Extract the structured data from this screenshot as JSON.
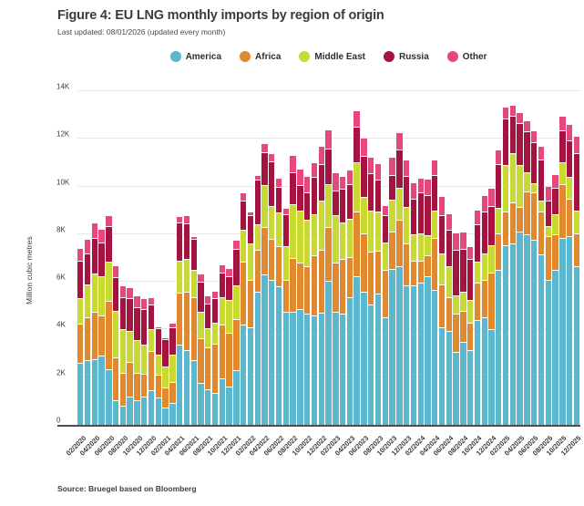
{
  "title": "Figure 4: EU LNG monthly imports by region of origin",
  "subtitle": "Last updated: 08/01/2026 (updated every month)",
  "source": "Source: Bruegel based on Bloomberg",
  "chart_data": {
    "type": "bar",
    "stacked": true,
    "title": "Figure 4: EU LNG monthly imports by region of origin",
    "ylabel": "Million cubic metres",
    "ylim": [
      0,
      14000
    ],
    "yticks": [
      "0",
      "2K",
      "4K",
      "6K",
      "8K",
      "10K",
      "12K",
      "14K"
    ],
    "grid": true,
    "legend_position": "top-center",
    "x_label_every": 2,
    "x": [
      "02/2020",
      "03/2020",
      "04/2020",
      "05/2020",
      "06/2020",
      "07/2020",
      "08/2020",
      "09/2020",
      "10/2020",
      "11/2020",
      "12/2020",
      "01/2021",
      "02/2021",
      "03/2021",
      "04/2021",
      "05/2021",
      "06/2021",
      "07/2021",
      "08/2021",
      "09/2021",
      "10/2021",
      "11/2021",
      "12/2021",
      "01/2022",
      "02/2022",
      "03/2022",
      "04/2022",
      "05/2022",
      "06/2022",
      "07/2022",
      "08/2022",
      "09/2022",
      "10/2022",
      "11/2022",
      "12/2022",
      "01/2023",
      "02/2023",
      "03/2023",
      "04/2023",
      "05/2023",
      "06/2023",
      "07/2023",
      "08/2023",
      "09/2023",
      "10/2023",
      "11/2023",
      "12/2023",
      "01/2024",
      "02/2024",
      "03/2024",
      "04/2024",
      "05/2024",
      "06/2024",
      "07/2024",
      "08/2024",
      "09/2024",
      "10/2024",
      "11/2024",
      "12/2024",
      "01/2025",
      "02/2025",
      "03/2025",
      "04/2025",
      "05/2025",
      "06/2025",
      "07/2025",
      "08/2025",
      "09/2025",
      "10/2025",
      "11/2025",
      "12/2025"
    ],
    "series": [
      {
        "name": "America",
        "color": "#5BB7CE",
        "values": [
          2600,
          2700,
          2750,
          2900,
          2350,
          1050,
          800,
          1200,
          1050,
          1200,
          1450,
          1150,
          720,
          900,
          3350,
          3150,
          2700,
          1750,
          1500,
          1350,
          1950,
          1600,
          2300,
          4200,
          4100,
          5600,
          6300,
          6100,
          5800,
          4750,
          4750,
          4850,
          4650,
          4600,
          4700,
          6050,
          4750,
          4650,
          5350,
          6250,
          5600,
          5050,
          5500,
          4500,
          6550,
          6650,
          5850,
          5850,
          5950,
          6250,
          5650,
          4100,
          3950,
          3050,
          3500,
          3150,
          4400,
          4500,
          4000,
          6500,
          7550,
          7600,
          8100,
          8000,
          7750,
          7150,
          6100,
          6500,
          7850,
          7900,
          6650
        ]
      },
      {
        "name": "Africa",
        "color": "#E0892F",
        "values": [
          1650,
          1800,
          2000,
          1700,
          2850,
          1800,
          1400,
          1450,
          1150,
          950,
          1650,
          950,
          840,
          900,
          2200,
          2450,
          2650,
          1900,
          1750,
          2050,
          2250,
          2250,
          2150,
          2650,
          2000,
          1750,
          2000,
          1700,
          1700,
          1350,
          2250,
          1950,
          2000,
          2500,
          2650,
          2250,
          2050,
          2300,
          1700,
          2700,
          2450,
          2200,
          1800,
          2000,
          1550,
          1950,
          1750,
          1050,
          950,
          850,
          2200,
          1800,
          1400,
          1600,
          1300,
          1150,
          1550,
          1600,
          2400,
          1550,
          1400,
          1750,
          1050,
          1800,
          2000,
          1800,
          1800,
          1500,
          2250,
          1600,
          1400
        ]
      },
      {
        "name": "Middle East",
        "color": "#C7D932",
        "values": [
          1050,
          1400,
          1600,
          1650,
          1650,
          1950,
          1800,
          1300,
          1350,
          1200,
          900,
          850,
          900,
          1150,
          1350,
          1350,
          1150,
          1100,
          800,
          900,
          1150,
          1400,
          1400,
          1350,
          1500,
          1050,
          1750,
          1400,
          1400,
          1400,
          2250,
          2200,
          1950,
          1750,
          2050,
          1800,
          2000,
          1550,
          1600,
          2050,
          1500,
          1750,
          1650,
          1150,
          1350,
          1350,
          1550,
          1100,
          1150,
          850,
          1150,
          1300,
          1300,
          800,
          770,
          950,
          900,
          1100,
          1150,
          1050,
          1950,
          2050,
          1750,
          800,
          400,
          450,
          450,
          850,
          900,
          900,
          950
        ]
      },
      {
        "name": "Russia",
        "color": "#A51441",
        "values": [
          1600,
          1300,
          1500,
          1400,
          1500,
          1400,
          1350,
          1350,
          1400,
          1500,
          1050,
          1100,
          1150,
          1150,
          1600,
          1500,
          1300,
          1250,
          1050,
          1000,
          1050,
          1000,
          1550,
          1200,
          1200,
          1900,
          1400,
          1850,
          1100,
          1350,
          1350,
          1050,
          1150,
          1550,
          1550,
          1500,
          1050,
          1400,
          1450,
          1500,
          1750,
          1550,
          1350,
          1150,
          1050,
          1600,
          1300,
          1500,
          1700,
          1700,
          1500,
          1600,
          1550,
          1900,
          1800,
          1700,
          1550,
          1750,
          1650,
          1850,
          1950,
          1550,
          1750,
          1700,
          1700,
          1750,
          1050,
          1100,
          1350,
          1550,
          2400
        ]
      },
      {
        "name": "Other",
        "color": "#E4487D",
        "values": [
          500,
          550,
          600,
          550,
          400,
          450,
          450,
          450,
          450,
          450,
          250,
          50,
          40,
          150,
          240,
          300,
          100,
          300,
          300,
          300,
          300,
          300,
          320,
          320,
          100,
          140,
          320,
          320,
          320,
          200,
          700,
          650,
          650,
          580,
          700,
          770,
          700,
          520,
          580,
          650,
          700,
          650,
          650,
          400,
          700,
          700,
          650,
          650,
          580,
          650,
          580,
          770,
          650,
          700,
          700,
          520,
          580,
          650,
          700,
          580,
          450,
          450,
          450,
          450,
          450,
          500,
          580,
          520,
          580,
          650,
          700
        ]
      }
    ]
  }
}
